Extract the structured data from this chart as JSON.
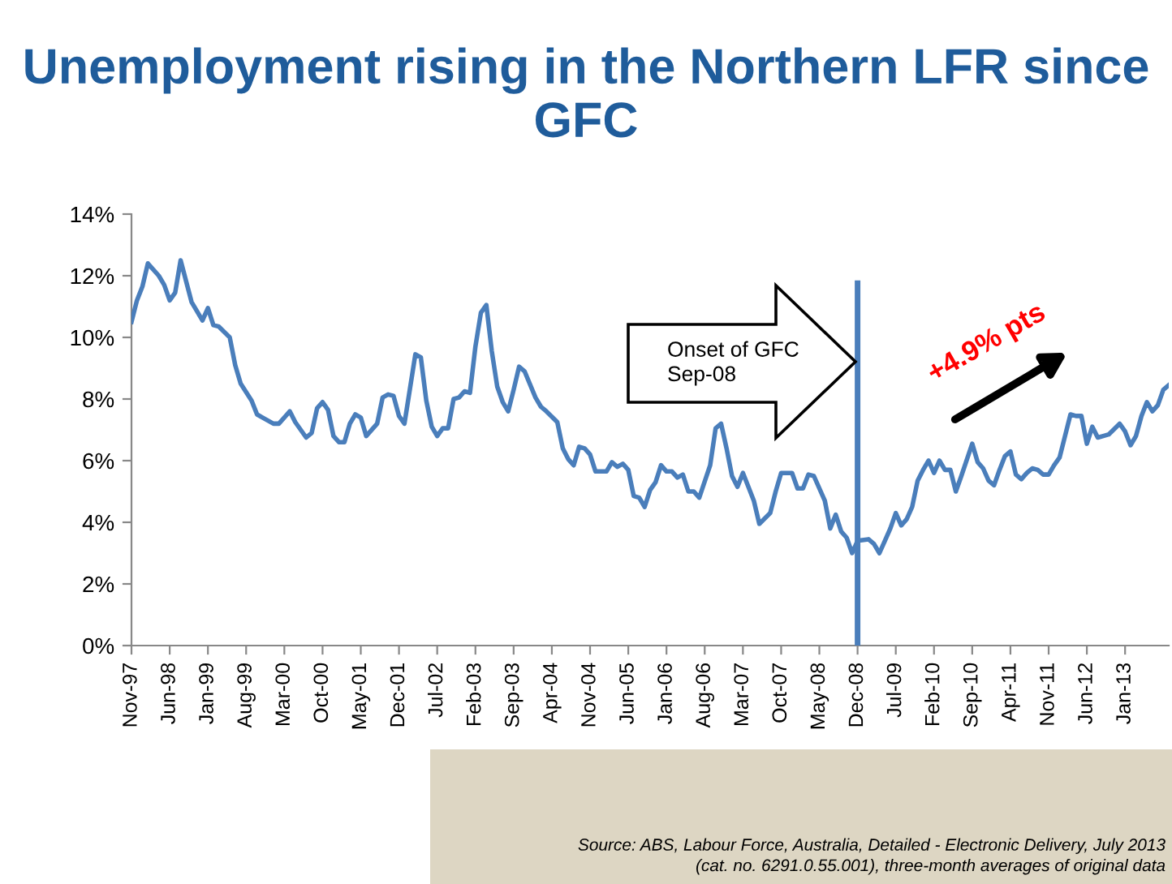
{
  "chart_data": {
    "type": "line",
    "title": "Unemployment rising in the Northern LFR since GFC",
    "x": [
      "1997-11",
      "1997-12",
      "1998-01",
      "1998-02",
      "1998-04",
      "1998-05",
      "1998-06",
      "1998-07",
      "1998-08",
      "1998-10",
      "1998-12",
      "1999-01",
      "1999-02",
      "1999-03",
      "1999-05",
      "1999-06",
      "1999-07",
      "1999-09",
      "1999-10",
      "1999-11",
      "2000-01",
      "2000-02",
      "2000-04",
      "2000-05",
      "2000-07",
      "2000-08",
      "2000-09",
      "2000-10",
      "2000-11",
      "2000-12",
      "2001-01",
      "2001-02",
      "2001-03",
      "2001-04",
      "2001-05",
      "2001-06",
      "2001-08",
      "2001-09",
      "2001-10",
      "2001-11",
      "2001-12",
      "2002-01",
      "2002-03",
      "2002-04",
      "2002-05",
      "2002-06",
      "2002-07",
      "2002-08",
      "2002-09",
      "2002-10",
      "2002-11",
      "2002-12",
      "2003-01",
      "2003-02",
      "2003-03",
      "2003-04",
      "2003-05",
      "2003-06",
      "2003-07",
      "2003-08",
      "2003-09",
      "2003-10",
      "2003-11",
      "2004-01",
      "2004-02",
      "2004-03",
      "2004-05",
      "2004-06",
      "2004-07",
      "2004-08",
      "2004-09",
      "2004-10",
      "2004-11",
      "2004-12",
      "2005-02",
      "2005-03",
      "2005-04",
      "2005-05",
      "2005-06",
      "2005-07",
      "2005-08",
      "2005-09",
      "2005-10",
      "2005-11",
      "2005-12",
      "2006-01",
      "2006-02",
      "2006-03",
      "2006-04",
      "2006-05",
      "2006-06",
      "2006-07",
      "2006-09",
      "2006-10",
      "2006-11",
      "2006-12",
      "2007-01",
      "2007-02",
      "2007-03",
      "2007-04",
      "2007-05",
      "2007-06",
      "2007-08",
      "2007-09",
      "2007-10",
      "2007-12",
      "2008-01",
      "2008-02",
      "2008-03",
      "2008-04",
      "2008-06",
      "2008-07",
      "2008-08",
      "2008-09",
      "2008-10",
      "2008-11",
      "2008-12",
      "2009-02",
      "2009-03",
      "2009-04",
      "2009-05",
      "2009-06",
      "2009-07",
      "2009-08",
      "2009-09",
      "2009-10",
      "2009-11",
      "2009-12",
      "2010-01",
      "2010-02",
      "2010-03",
      "2010-04",
      "2010-05",
      "2010-06",
      "2010-07",
      "2010-09",
      "2010-10",
      "2010-11",
      "2010-12",
      "2011-01",
      "2011-02",
      "2011-03",
      "2011-04",
      "2011-05",
      "2011-06",
      "2011-07",
      "2011-08",
      "2011-09",
      "2011-10",
      "2011-11",
      "2011-12",
      "2012-01",
      "2012-02",
      "2012-03",
      "2012-04",
      "2012-05",
      "2012-06",
      "2012-07",
      "2012-08",
      "2012-09",
      "2012-10",
      "2012-12",
      "2013-01",
      "2013-02",
      "2013-03",
      "2013-04",
      "2013-05",
      "2013-06",
      "2013-07",
      "2013-08",
      "2013-09"
    ],
    "series": [
      {
        "color": "#4a7ebb",
        "values": [
          10.5,
          11.2,
          11.65,
          12.4,
          12.0,
          11.7,
          11.2,
          11.45,
          12.5,
          11.15,
          10.55,
          10.95,
          10.4,
          10.35,
          10.0,
          9.1,
          8.5,
          7.95,
          7.5,
          7.4,
          7.2,
          7.2,
          7.6,
          7.25,
          6.75,
          6.9,
          7.7,
          7.9,
          7.65,
          6.8,
          6.6,
          6.6,
          7.2,
          7.5,
          7.4,
          6.8,
          7.2,
          8.05,
          8.15,
          8.1,
          7.45,
          7.2,
          9.45,
          9.35,
          7.95,
          7.1,
          6.8,
          7.05,
          7.05,
          8.0,
          8.05,
          8.25,
          8.2,
          9.7,
          10.8,
          11.05,
          9.55,
          8.4,
          7.9,
          7.6,
          8.3,
          9.05,
          8.9,
          8.05,
          7.75,
          7.6,
          7.25,
          6.4,
          6.05,
          5.85,
          6.45,
          6.4,
          6.2,
          5.65,
          5.65,
          5.95,
          5.8,
          5.9,
          5.7,
          4.85,
          4.8,
          4.5,
          5.05,
          5.3,
          5.85,
          5.65,
          5.65,
          5.45,
          5.55,
          5.0,
          5.0,
          4.8,
          5.85,
          7.05,
          7.2,
          6.4,
          5.5,
          5.15,
          5.6,
          5.15,
          4.7,
          3.95,
          4.3,
          5.0,
          5.6,
          5.6,
          5.1,
          5.1,
          5.55,
          5.5,
          4.7,
          3.8,
          4.25,
          3.7,
          3.5,
          3.0,
          3.4,
          3.45,
          3.3,
          3.0,
          3.4,
          3.8,
          4.3,
          3.9,
          4.1,
          4.5,
          5.35,
          5.7,
          6.0,
          5.6,
          6.0,
          5.7,
          5.7,
          5.0,
          5.5,
          6.55,
          5.95,
          5.75,
          5.35,
          5.2,
          5.7,
          6.15,
          6.3,
          5.55,
          5.4,
          5.6,
          5.75,
          5.7,
          5.55,
          5.55,
          5.85,
          6.1,
          6.8,
          7.5,
          7.45,
          7.45,
          6.55,
          7.1,
          6.75,
          6.8,
          6.85,
          7.2,
          6.95,
          6.5,
          6.8,
          7.45,
          7.9,
          7.6,
          7.8,
          8.3,
          8.45
        ]
      }
    ],
    "xlim": [
      "1997-11",
      "2013-09"
    ],
    "xticks": [
      {
        "value": "1997-11",
        "label": "Nov-97"
      },
      {
        "value": "1998-06",
        "label": "Jun-98"
      },
      {
        "value": "1999-01",
        "label": "Jan-99"
      },
      {
        "value": "1999-08",
        "label": "Aug-99"
      },
      {
        "value": "2000-03",
        "label": "Mar-00"
      },
      {
        "value": "2000-10",
        "label": "Oct-00"
      },
      {
        "value": "2001-05",
        "label": "May-01"
      },
      {
        "value": "2001-12",
        "label": "Dec-01"
      },
      {
        "value": "2002-07",
        "label": "Jul-02"
      },
      {
        "value": "2003-02",
        "label": "Feb-03"
      },
      {
        "value": "2003-09",
        "label": "Sep-03"
      },
      {
        "value": "2004-04",
        "label": "Apr-04"
      },
      {
        "value": "2004-11",
        "label": "Nov-04"
      },
      {
        "value": "2005-06",
        "label": "Jun-05"
      },
      {
        "value": "2006-01",
        "label": "Jan-06"
      },
      {
        "value": "2006-08",
        "label": "Aug-06"
      },
      {
        "value": "2007-03",
        "label": "Mar-07"
      },
      {
        "value": "2007-10",
        "label": "Oct-07"
      },
      {
        "value": "2008-05",
        "label": "May-08"
      },
      {
        "value": "2008-12",
        "label": "Dec-08"
      },
      {
        "value": "2009-07",
        "label": "Jul-09"
      },
      {
        "value": "2010-02",
        "label": "Feb-10"
      },
      {
        "value": "2010-09",
        "label": "Sep-10"
      },
      {
        "value": "2011-04",
        "label": "Apr-11"
      },
      {
        "value": "2011-11",
        "label": "Nov-11"
      },
      {
        "value": "2012-06",
        "label": "Jun-12"
      },
      {
        "value": "2013-01",
        "label": "Jan-13"
      }
    ],
    "ylim": [
      0,
      14
    ],
    "yticks": [
      {
        "value": 0,
        "label": "0%"
      },
      {
        "value": 2,
        "label": "2%"
      },
      {
        "value": 4,
        "label": "4%"
      },
      {
        "value": 6,
        "label": "6%"
      },
      {
        "value": 8,
        "label": "8%"
      },
      {
        "value": 10,
        "label": "10%"
      },
      {
        "value": 12,
        "label": "12%"
      },
      {
        "value": 14,
        "label": "14%"
      }
    ],
    "ref_lines": [
      {
        "axis": "x",
        "value": "2008-12",
        "color": "#4a7ebb"
      }
    ],
    "annotations": [
      "Onset of GFC\nSep-08",
      "+4.9% pts",
      "Source: ABS, Labour Force, Australia, Detailed - Electronic Delivery, July 2013\n(cat. no. 6291.0.55.001), three-month averages of original data"
    ]
  }
}
